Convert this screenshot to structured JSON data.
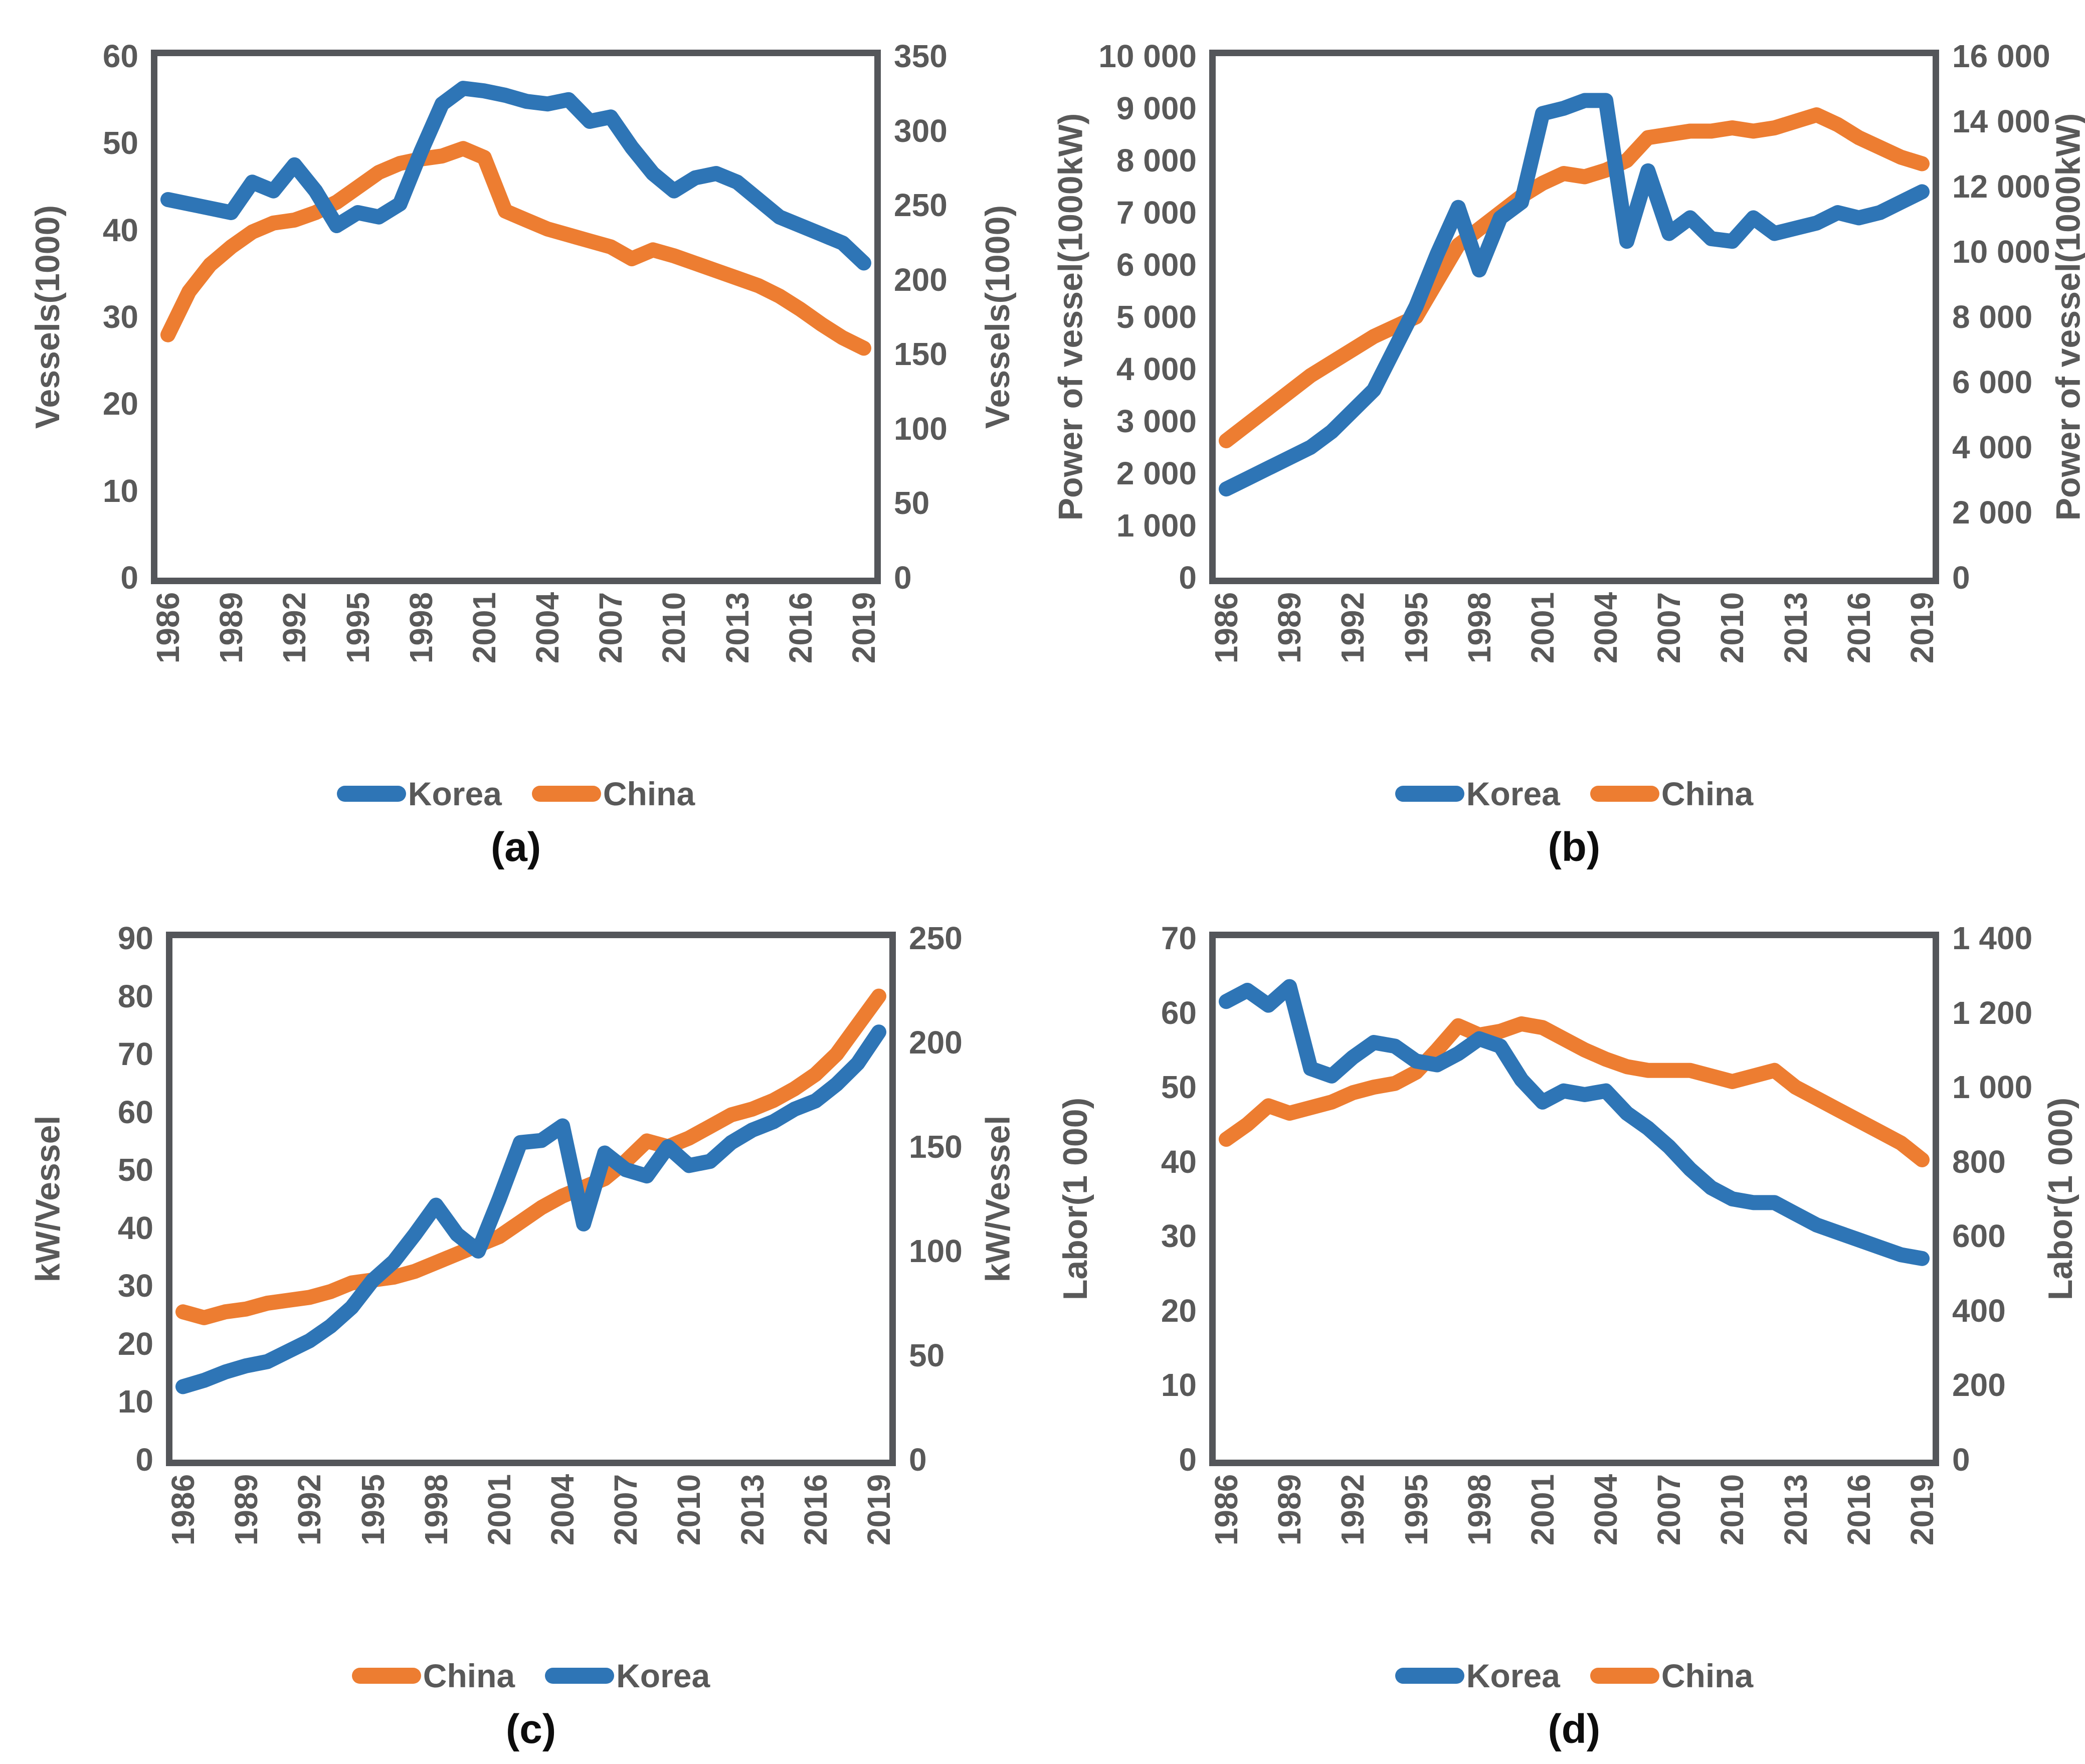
{
  "figure": {
    "description": "Four line charts comparing Korea and China fisheries, 1986-2019",
    "accent_colors": {
      "korea_blue": "#2e75b6",
      "china_orange": "#ed7d31",
      "frame_gray": "#54565a",
      "label_gray": "#595959"
    }
  },
  "chart_data": [
    {
      "type": "line",
      "caption": "(a)",
      "x": [
        1986,
        1987,
        1988,
        1989,
        1990,
        1991,
        1992,
        1993,
        1994,
        1995,
        1996,
        1997,
        1998,
        1999,
        2000,
        2001,
        2002,
        2003,
        2004,
        2005,
        2006,
        2007,
        2008,
        2009,
        2010,
        2011,
        2012,
        2013,
        2014,
        2015,
        2016,
        2017,
        2018,
        2019
      ],
      "x_tick_labels": [
        "1986",
        "1989",
        "1992",
        "1995",
        "1998",
        "2001",
        "2004",
        "2007",
        "2010",
        "2013",
        "2016",
        "2019"
      ],
      "left_axis": {
        "title": "Vessels(1000)",
        "min": 0,
        "max": 60,
        "tick_labels": [
          "60",
          "50",
          "40",
          "30",
          "20",
          "10",
          "0"
        ]
      },
      "right_axis": {
        "title": "Vessels(1000)",
        "min": 0,
        "max": 350,
        "tick_labels": [
          "350",
          "300",
          "250",
          "200",
          "150",
          "100",
          "50",
          "0"
        ]
      },
      "legend": [
        {
          "label": "Korea",
          "color": "#2e75b6"
        },
        {
          "label": "China",
          "color": "#ed7d31"
        }
      ],
      "series": [
        {
          "name": "China",
          "axis": "right",
          "color": "#ed7d31",
          "values": [
            163,
            192,
            210,
            222,
            232,
            238,
            240,
            245,
            252,
            262,
            272,
            278,
            281,
            283,
            288,
            282,
            246,
            240,
            234,
            230,
            226,
            222,
            214,
            220,
            216,
            211,
            206,
            201,
            196,
            189,
            180,
            170,
            161,
            154
          ]
        },
        {
          "name": "Korea",
          "axis": "left",
          "color": "#2e75b6",
          "values": [
            43.5,
            43,
            42.5,
            42,
            45.5,
            44.5,
            47.5,
            44.5,
            40.5,
            42,
            41.5,
            43,
            49,
            54.5,
            56.3,
            56,
            55.5,
            54.8,
            54.5,
            55,
            52.5,
            53,
            49.5,
            46.5,
            44.5,
            46,
            46.5,
            45.5,
            43.5,
            41.5,
            40.5,
            39.5,
            38.5,
            36.2
          ]
        }
      ]
    },
    {
      "type": "line",
      "caption": "(b)",
      "x": [
        1986,
        1987,
        1988,
        1989,
        1990,
        1991,
        1992,
        1993,
        1994,
        1995,
        1996,
        1997,
        1998,
        1999,
        2000,
        2001,
        2002,
        2003,
        2004,
        2005,
        2006,
        2007,
        2008,
        2009,
        2010,
        2011,
        2012,
        2013,
        2014,
        2015,
        2016,
        2017,
        2018,
        2019
      ],
      "x_tick_labels": [
        "1986",
        "1989",
        "1992",
        "1995",
        "1998",
        "2001",
        "2004",
        "2007",
        "2010",
        "2013",
        "2016",
        "2019"
      ],
      "left_axis": {
        "title": "Power of vessel(1000kW)",
        "min": 0,
        "max": 10000,
        "tick_labels": [
          "10 000",
          "9 000",
          "8 000",
          "7 000",
          "6 000",
          "5 000",
          "4 000",
          "3 000",
          "2 000",
          "1 000",
          "0"
        ]
      },
      "right_axis": {
        "title": "Power of vessel(1000kW)",
        "min": 0,
        "max": 16000,
        "tick_labels": [
          "16 000",
          "14 000",
          "12 000",
          "10 000",
          "8 000",
          "6 000",
          "4 000",
          "2 000",
          "0"
        ]
      },
      "legend": [
        {
          "label": "Korea",
          "color": "#2e75b6"
        },
        {
          "label": "China",
          "color": "#ed7d31"
        }
      ],
      "series": [
        {
          "name": "China",
          "axis": "right",
          "color": "#ed7d31",
          "values": [
            4200,
            4700,
            5200,
            5700,
            6200,
            6600,
            7000,
            7400,
            7700,
            8000,
            9100,
            10200,
            10700,
            11200,
            11700,
            12100,
            12400,
            12300,
            12500,
            12800,
            13500,
            13600,
            13700,
            13700,
            13800,
            13700,
            13800,
            14000,
            14200,
            13900,
            13500,
            13200,
            12900,
            12700
          ]
        },
        {
          "name": "Korea",
          "axis": "left",
          "color": "#2e75b6",
          "values": [
            1700,
            1900,
            2100,
            2300,
            2500,
            2800,
            3200,
            3600,
            4400,
            5200,
            6200,
            7100,
            5900,
            6900,
            7200,
            8900,
            9000,
            9150,
            9150,
            6450,
            7800,
            6600,
            6900,
            6500,
            6450,
            6900,
            6600,
            6700,
            6800,
            7000,
            6900,
            7000,
            7200,
            7400
          ]
        }
      ]
    },
    {
      "type": "line",
      "caption": "(c)",
      "x": [
        1986,
        1987,
        1988,
        1989,
        1990,
        1991,
        1992,
        1993,
        1994,
        1995,
        1996,
        1997,
        1998,
        1999,
        2000,
        2001,
        2002,
        2003,
        2004,
        2005,
        2006,
        2007,
        2008,
        2009,
        2010,
        2011,
        2012,
        2013,
        2014,
        2015,
        2016,
        2017,
        2018,
        2019
      ],
      "x_tick_labels": [
        "1986",
        "1989",
        "1992",
        "1995",
        "1998",
        "2001",
        "2004",
        "2007",
        "2010",
        "2013",
        "2016",
        "2019"
      ],
      "left_axis": {
        "title": "kW/Vessel",
        "min": 0,
        "max": 90,
        "tick_labels": [
          "90",
          "80",
          "70",
          "60",
          "50",
          "40",
          "30",
          "20",
          "10",
          "0"
        ]
      },
      "right_axis": {
        "title": "kW/Vessel",
        "min": 0,
        "max": 250,
        "tick_labels": [
          "250",
          "200",
          "150",
          "100",
          "50",
          "0"
        ]
      },
      "legend": [
        {
          "label": "China",
          "color": "#ed7d31"
        },
        {
          "label": "Korea",
          "color": "#2e75b6"
        }
      ],
      "series": [
        {
          "name": "China",
          "axis": "left",
          "color": "#ed7d31",
          "values": [
            25.5,
            24.5,
            25.5,
            26,
            27,
            27.5,
            28,
            29,
            30.5,
            31,
            31.5,
            32.5,
            34,
            35.5,
            37,
            38.5,
            41,
            43.5,
            45.5,
            47,
            48.5,
            51.5,
            55,
            54,
            55.5,
            57.5,
            59.5,
            60.5,
            62,
            64,
            66.5,
            70,
            75,
            80
          ]
        },
        {
          "name": "Korea",
          "axis": "right",
          "color": "#2e75b6",
          "values": [
            35,
            38,
            42,
            45,
            47,
            52,
            57,
            64,
            73,
            86,
            95,
            108,
            122,
            108,
            100,
            125,
            152,
            153,
            160,
            113,
            147,
            139,
            136,
            150,
            141,
            143,
            152,
            158,
            162,
            168,
            172,
            180,
            190,
            205
          ]
        }
      ]
    },
    {
      "type": "line",
      "caption": "(d)",
      "x": [
        1986,
        1987,
        1988,
        1989,
        1990,
        1991,
        1992,
        1993,
        1994,
        1995,
        1996,
        1997,
        1998,
        1999,
        2000,
        2001,
        2002,
        2003,
        2004,
        2005,
        2006,
        2007,
        2008,
        2009,
        2010,
        2011,
        2012,
        2013,
        2014,
        2015,
        2016,
        2017,
        2018,
        2019
      ],
      "x_tick_labels": [
        "1986",
        "1989",
        "1992",
        "1995",
        "1998",
        "2001",
        "2004",
        "2007",
        "2010",
        "2013",
        "2016",
        "2019"
      ],
      "left_axis": {
        "title": "Labor(1 000)",
        "min": 0,
        "max": 70,
        "tick_labels": [
          "70",
          "60",
          "50",
          "40",
          "30",
          "20",
          "10",
          "0"
        ]
      },
      "right_axis": {
        "title": "Labor(1 000)",
        "min": 0,
        "max": 1400,
        "tick_labels": [
          "1 400",
          "1 200",
          "1 000",
          "800",
          "600",
          "400",
          "200",
          "0"
        ]
      },
      "legend": [
        {
          "label": "Korea",
          "color": "#2e75b6"
        },
        {
          "label": "China",
          "color": "#ed7d31"
        }
      ],
      "series": [
        {
          "name": "China",
          "axis": "right",
          "color": "#ed7d31",
          "values": [
            860,
            900,
            950,
            930,
            945,
            960,
            985,
            1000,
            1010,
            1040,
            1100,
            1165,
            1140,
            1150,
            1170,
            1160,
            1130,
            1100,
            1075,
            1055,
            1045,
            1045,
            1045,
            1030,
            1015,
            1030,
            1045,
            1000,
            970,
            940,
            910,
            880,
            850,
            805
          ]
        },
        {
          "name": "Korea",
          "axis": "left",
          "color": "#2e75b6",
          "values": [
            61.5,
            63,
            61,
            63.5,
            52.5,
            51.5,
            54,
            56,
            55.5,
            53.5,
            53,
            54.5,
            56.5,
            55.5,
            51,
            48,
            49.5,
            49,
            49.5,
            46.5,
            44.5,
            42,
            39,
            36.5,
            35,
            34.5,
            34.5,
            33,
            31.5,
            30.5,
            29.5,
            28.5,
            27.5,
            27
          ]
        }
      ]
    }
  ]
}
